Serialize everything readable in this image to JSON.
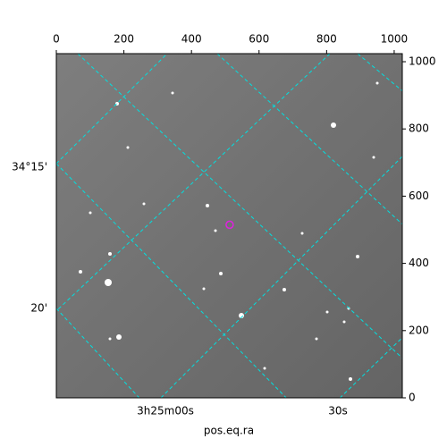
{
  "chart_data": {
    "type": "image",
    "xlabel": "pos.eq.ra",
    "xlim": [
      0,
      1024
    ],
    "ylim": [
      0,
      1024
    ],
    "xticks": [
      0,
      200,
      400,
      600,
      800,
      1000
    ],
    "yticks": [
      0,
      200,
      400,
      600,
      800,
      1000
    ],
    "dec_labels": [
      "34°15'",
      "20'"
    ],
    "ra_labels": [
      "3h25m00s",
      "30s"
    ],
    "grid_color": "#00e0e0",
    "marker": {
      "x": [
        513
      ],
      "y": [
        515
      ],
      "color": "#e020e0"
    }
  }
}
